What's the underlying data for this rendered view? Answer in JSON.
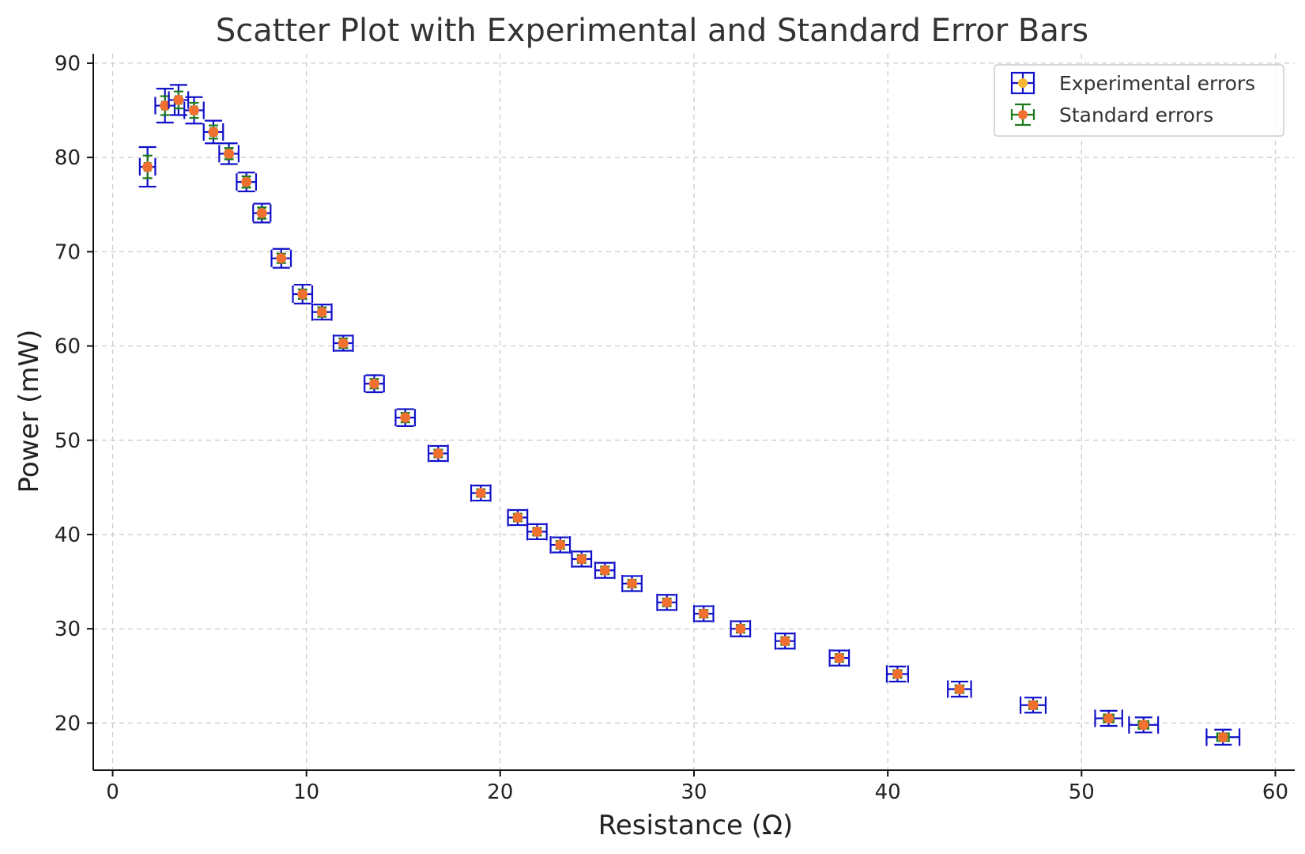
{
  "chart_data": {
    "type": "scatter",
    "title": "Scatter Plot with Experimental and Standard Error Bars",
    "xlabel": "Resistance (Ω)",
    "ylabel": "Power (mW)",
    "xlim": [
      -1,
      61
    ],
    "ylim": [
      15,
      91
    ],
    "xticks": [
      0,
      10,
      20,
      30,
      40,
      50,
      60
    ],
    "yticks": [
      20,
      30,
      40,
      50,
      60,
      70,
      80,
      90
    ],
    "xtick_labels": [
      "0",
      "10",
      "20",
      "30",
      "40",
      "50",
      "60"
    ],
    "ytick_labels": [
      "20",
      "30",
      "40",
      "50",
      "60",
      "70",
      "80",
      "90"
    ],
    "grid": true,
    "legend_position": "top-right",
    "legend": {
      "experimental_label": "Experimental errors",
      "standard_label": "Standard errors"
    },
    "colors": {
      "experimental_error": "#1010c8",
      "standard_error": "#1a7a1a",
      "marker": "#f07030",
      "legend_marker": "#f5b830"
    },
    "points": [
      {
        "x": 1.8,
        "y": 79.0,
        "exp_xerr": 0.4,
        "exp_yerr": 2.1,
        "std_xerr": 0.15,
        "std_yerr": 1.2
      },
      {
        "x": 2.7,
        "y": 85.5,
        "exp_xerr": 0.5,
        "exp_yerr": 1.8,
        "std_xerr": 0.15,
        "std_yerr": 1.0
      },
      {
        "x": 3.4,
        "y": 86.1,
        "exp_xerr": 0.5,
        "exp_yerr": 1.6,
        "std_xerr": 0.15,
        "std_yerr": 0.9
      },
      {
        "x": 4.2,
        "y": 85.0,
        "exp_xerr": 0.5,
        "exp_yerr": 1.4,
        "std_xerr": 0.15,
        "std_yerr": 0.8
      },
      {
        "x": 5.2,
        "y": 82.7,
        "exp_xerr": 0.5,
        "exp_yerr": 1.2,
        "std_xerr": 0.15,
        "std_yerr": 0.7
      },
      {
        "x": 6.0,
        "y": 80.4,
        "exp_xerr": 0.5,
        "exp_yerr": 1.1,
        "std_xerr": 0.15,
        "std_yerr": 0.6
      },
      {
        "x": 6.9,
        "y": 77.4,
        "exp_xerr": 0.5,
        "exp_yerr": 1.0,
        "std_xerr": 0.15,
        "std_yerr": 0.6
      },
      {
        "x": 7.7,
        "y": 74.1,
        "exp_xerr": 0.45,
        "exp_yerr": 1.0,
        "std_xerr": 0.15,
        "std_yerr": 0.6
      },
      {
        "x": 8.7,
        "y": 69.3,
        "exp_xerr": 0.5,
        "exp_yerr": 1.0,
        "std_xerr": 0.15,
        "std_yerr": 0.5
      },
      {
        "x": 9.8,
        "y": 65.5,
        "exp_xerr": 0.5,
        "exp_yerr": 1.0,
        "std_xerr": 0.15,
        "std_yerr": 0.5
      },
      {
        "x": 10.8,
        "y": 63.6,
        "exp_xerr": 0.5,
        "exp_yerr": 0.8,
        "std_xerr": 0.15,
        "std_yerr": 0.5
      },
      {
        "x": 11.9,
        "y": 60.3,
        "exp_xerr": 0.5,
        "exp_yerr": 0.8,
        "std_xerr": 0.15,
        "std_yerr": 0.5
      },
      {
        "x": 13.5,
        "y": 56.0,
        "exp_xerr": 0.5,
        "exp_yerr": 0.9,
        "std_xerr": 0.15,
        "std_yerr": 0.5
      },
      {
        "x": 15.1,
        "y": 52.4,
        "exp_xerr": 0.5,
        "exp_yerr": 0.9,
        "std_xerr": 0.15,
        "std_yerr": 0.5
      },
      {
        "x": 16.8,
        "y": 48.6,
        "exp_xerr": 0.5,
        "exp_yerr": 0.8,
        "std_xerr": 0.15,
        "std_yerr": 0.4
      },
      {
        "x": 19.0,
        "y": 44.4,
        "exp_xerr": 0.5,
        "exp_yerr": 0.8,
        "std_xerr": 0.15,
        "std_yerr": 0.4
      },
      {
        "x": 20.9,
        "y": 41.8,
        "exp_xerr": 0.5,
        "exp_yerr": 0.8,
        "std_xerr": 0.15,
        "std_yerr": 0.4
      },
      {
        "x": 21.9,
        "y": 40.3,
        "exp_xerr": 0.5,
        "exp_yerr": 0.8,
        "std_xerr": 0.15,
        "std_yerr": 0.4
      },
      {
        "x": 23.1,
        "y": 38.9,
        "exp_xerr": 0.5,
        "exp_yerr": 0.8,
        "std_xerr": 0.15,
        "std_yerr": 0.4
      },
      {
        "x": 24.2,
        "y": 37.4,
        "exp_xerr": 0.5,
        "exp_yerr": 0.8,
        "std_xerr": 0.15,
        "std_yerr": 0.4
      },
      {
        "x": 25.4,
        "y": 36.2,
        "exp_xerr": 0.5,
        "exp_yerr": 0.8,
        "std_xerr": 0.15,
        "std_yerr": 0.4
      },
      {
        "x": 26.8,
        "y": 34.8,
        "exp_xerr": 0.5,
        "exp_yerr": 0.8,
        "std_xerr": 0.15,
        "std_yerr": 0.4
      },
      {
        "x": 28.6,
        "y": 32.8,
        "exp_xerr": 0.5,
        "exp_yerr": 0.8,
        "std_xerr": 0.15,
        "std_yerr": 0.4
      },
      {
        "x": 30.5,
        "y": 31.6,
        "exp_xerr": 0.5,
        "exp_yerr": 0.8,
        "std_xerr": 0.15,
        "std_yerr": 0.4
      },
      {
        "x": 32.4,
        "y": 30.0,
        "exp_xerr": 0.5,
        "exp_yerr": 0.8,
        "std_xerr": 0.15,
        "std_yerr": 0.4
      },
      {
        "x": 34.7,
        "y": 28.7,
        "exp_xerr": 0.5,
        "exp_yerr": 0.8,
        "std_xerr": 0.15,
        "std_yerr": 0.4
      },
      {
        "x": 37.5,
        "y": 26.9,
        "exp_xerr": 0.5,
        "exp_yerr": 0.8,
        "std_xerr": 0.15,
        "std_yerr": 0.4
      },
      {
        "x": 40.5,
        "y": 25.2,
        "exp_xerr": 0.55,
        "exp_yerr": 0.8,
        "std_xerr": 0.2,
        "std_yerr": 0.4
      },
      {
        "x": 43.7,
        "y": 23.6,
        "exp_xerr": 0.6,
        "exp_yerr": 0.8,
        "std_xerr": 0.2,
        "std_yerr": 0.4
      },
      {
        "x": 47.5,
        "y": 21.9,
        "exp_xerr": 0.65,
        "exp_yerr": 0.8,
        "std_xerr": 0.2,
        "std_yerr": 0.4
      },
      {
        "x": 51.4,
        "y": 20.5,
        "exp_xerr": 0.7,
        "exp_yerr": 0.8,
        "std_xerr": 0.25,
        "std_yerr": 0.4
      },
      {
        "x": 53.2,
        "y": 19.8,
        "exp_xerr": 0.75,
        "exp_yerr": 0.8,
        "std_xerr": 0.25,
        "std_yerr": 0.4
      },
      {
        "x": 57.3,
        "y": 18.5,
        "exp_xerr": 0.85,
        "exp_yerr": 0.8,
        "std_xerr": 0.3,
        "std_yerr": 0.4
      }
    ]
  }
}
